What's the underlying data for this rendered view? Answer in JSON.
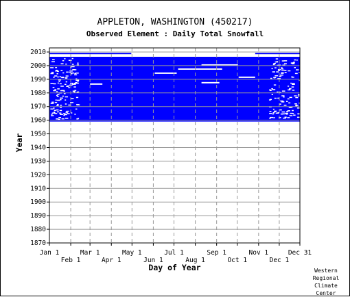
{
  "title": "APPLETON, WASHINGTON   (450217)",
  "subtitle": "Observed Element : Daily Total Snowfall",
  "credit": [
    "Western",
    "Regional",
    "Climate",
    "Center"
  ],
  "colors": {
    "data": "#0000ff",
    "grid": "#999999",
    "axis": "#000000",
    "background": "#ffffff"
  },
  "chart_data": {
    "type": "heatmap",
    "title": "APPLETON, WASHINGTON   (450217)",
    "subtitle": "Observed Element : Daily Total Snowfall",
    "xlabel": "Day of Year",
    "ylabel": "Year",
    "x_ticks_top_row": [
      {
        "label": "Jan 1",
        "day": 1
      },
      {
        "label": "Mar 1",
        "day": 60
      },
      {
        "label": "May 1",
        "day": 121
      },
      {
        "label": "Jul 1",
        "day": 182
      },
      {
        "label": "Sep 1",
        "day": 244
      },
      {
        "label": "Nov 1",
        "day": 305
      },
      {
        "label": "Dec 31",
        "day": 365
      }
    ],
    "x_ticks_bottom_row": [
      {
        "label": "Feb 1",
        "day": 32
      },
      {
        "label": "Apr 1",
        "day": 91
      },
      {
        "label": "Jun 1",
        "day": 152
      },
      {
        "label": "Aug 1",
        "day": 213
      },
      {
        "label": "Oct 1",
        "day": 274
      },
      {
        "label": "Dec 1",
        "day": 335
      }
    ],
    "y_ticks": [
      2010,
      2000,
      1990,
      1980,
      1970,
      1960,
      1950,
      1940,
      1930,
      1920,
      1910,
      1900,
      1890,
      1880,
      1870
    ],
    "xlim": [
      1,
      365
    ],
    "ylim": [
      1870,
      2010
    ],
    "grid": true,
    "observed_period": {
      "start_year": 1959,
      "end_year": 2006,
      "partial_year_2009_days": [
        1,
        120
      ]
    },
    "gap_bars": [
      {
        "year": 1995,
        "day_start": 154,
        "day_end": 186
      },
      {
        "year": 1998,
        "day_start": 188,
        "day_end": 252
      },
      {
        "year": 1988,
        "day_start": 222,
        "day_end": 248
      },
      {
        "year": 2001,
        "day_start": 222,
        "day_end": 275
      },
      {
        "year": 1992,
        "day_start": 276,
        "day_end": 300
      },
      {
        "year": 1987,
        "day_start": 60,
        "day_end": 78
      }
    ]
  }
}
